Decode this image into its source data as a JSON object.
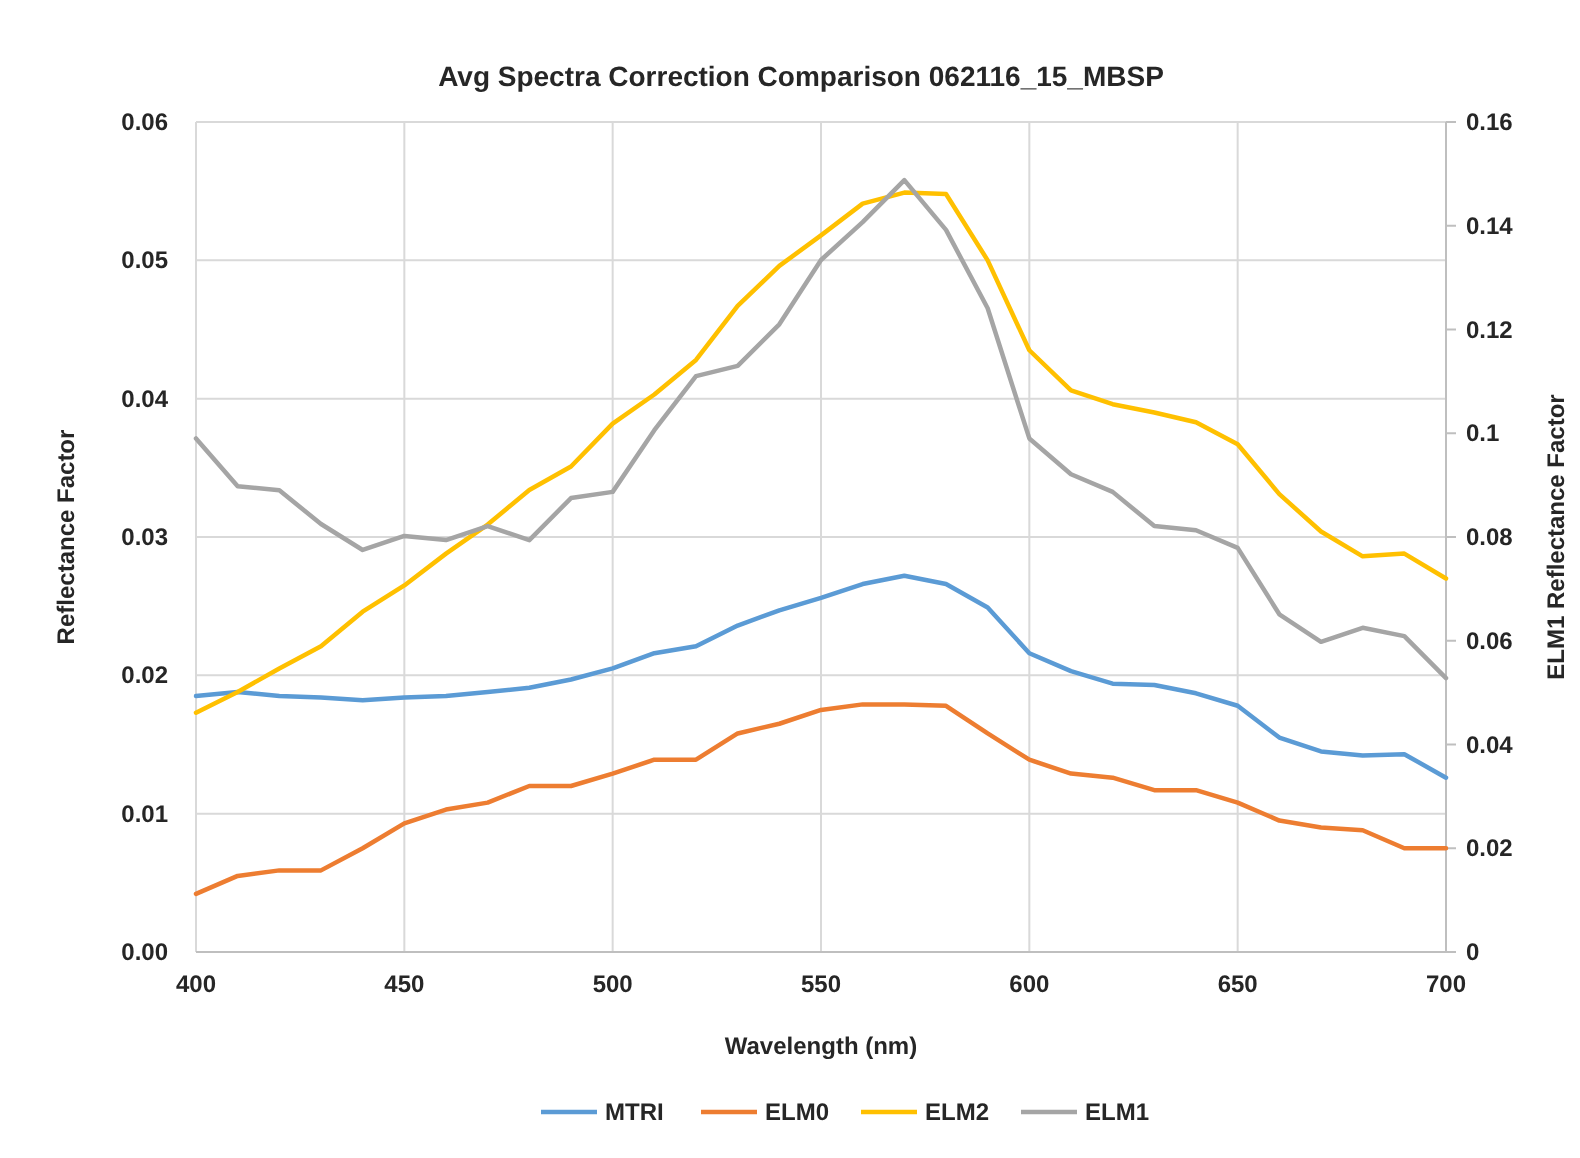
{
  "chart_data": {
    "type": "line",
    "title": "Avg Spectra Correction Comparison 062116_15_MBSP",
    "xlabel": "Wavelength (nm)",
    "ylabel": "Reflectance Factor",
    "y2label": "ELM1 Reflectance Factor",
    "x": [
      400,
      410,
      420,
      430,
      440,
      450,
      460,
      470,
      480,
      490,
      500,
      510,
      520,
      530,
      540,
      550,
      560,
      570,
      580,
      590,
      600,
      610,
      620,
      630,
      640,
      650,
      660,
      670,
      680,
      690,
      700
    ],
    "series": [
      {
        "name": "MTRI",
        "color": "#5b9bd5",
        "values": [
          0.0185,
          0.0188,
          0.0185,
          0.0184,
          0.0182,
          0.0184,
          0.0185,
          0.0188,
          0.0191,
          0.0197,
          0.0205,
          0.0216,
          0.0221,
          0.0236,
          0.0247,
          0.0256,
          0.0266,
          0.0272,
          0.0266,
          0.0249,
          0.0216,
          0.0203,
          0.0194,
          0.0193,
          0.0187,
          0.0178,
          0.0155,
          0.0145,
          0.0142,
          0.0143,
          0.0126
        ]
      },
      {
        "name": "ELM0",
        "color": "#ed7d31",
        "values": [
          0.0042,
          0.0055,
          0.0059,
          0.0059,
          0.0075,
          0.0093,
          0.0103,
          0.0108,
          0.012,
          0.012,
          0.0129,
          0.0139,
          0.0139,
          0.0158,
          0.0165,
          0.0175,
          0.0179,
          0.0179,
          0.0178,
          0.0158,
          0.0139,
          0.0129,
          0.0126,
          0.0117,
          0.0117,
          0.0108,
          0.0095,
          0.009,
          0.0088,
          0.0075,
          0.0075
        ]
      },
      {
        "name": "ELM2",
        "color": "#ffc000",
        "values": [
          0.0173,
          0.0188,
          0.0205,
          0.0221,
          0.0246,
          0.0265,
          0.0288,
          0.0309,
          0.0334,
          0.0351,
          0.0382,
          0.0403,
          0.0428,
          0.0467,
          0.0496,
          0.0518,
          0.0541,
          0.0549,
          0.0548,
          0.05,
          0.0435,
          0.0406,
          0.0396,
          0.039,
          0.0383,
          0.0367,
          0.0331,
          0.0304,
          0.0286,
          0.0288,
          0.027
        ]
      },
      {
        "name": "ELM1",
        "color": "#a5a5a5",
        "axis": "y2",
        "values": [
          0.099,
          0.0898,
          0.089,
          0.0825,
          0.0775,
          0.0802,
          0.0794,
          0.0821,
          0.0794,
          0.0875,
          0.0887,
          0.1006,
          0.111,
          0.113,
          0.121,
          0.1334,
          0.1407,
          0.1488,
          0.1392,
          0.1241,
          0.099,
          0.0921,
          0.0887,
          0.0821,
          0.0813,
          0.0779,
          0.0651,
          0.0598,
          0.0625,
          0.0609,
          0.0528
        ]
      }
    ],
    "xlim": [
      400,
      700
    ],
    "xticks": [
      400,
      450,
      500,
      550,
      600,
      650,
      700
    ],
    "ylim": [
      0,
      0.06
    ],
    "yticks": [
      {
        "value": 0,
        "label": "0.00"
      },
      {
        "value": 0.01,
        "label": "0.01"
      },
      {
        "value": 0.02,
        "label": "0.02"
      },
      {
        "value": 0.03,
        "label": "0.03"
      },
      {
        "value": 0.04,
        "label": "0.04"
      },
      {
        "value": 0.05,
        "label": "0.05"
      },
      {
        "value": 0.06,
        "label": "0.06"
      }
    ],
    "y2lim": [
      0,
      0.16
    ],
    "y2ticks": [
      0,
      0.02,
      0.04,
      0.06,
      0.08,
      0.1,
      0.12,
      0.14,
      0.16
    ],
    "grid": true,
    "legend": "bottom",
    "marker": "none",
    "line_style": "solid"
  }
}
